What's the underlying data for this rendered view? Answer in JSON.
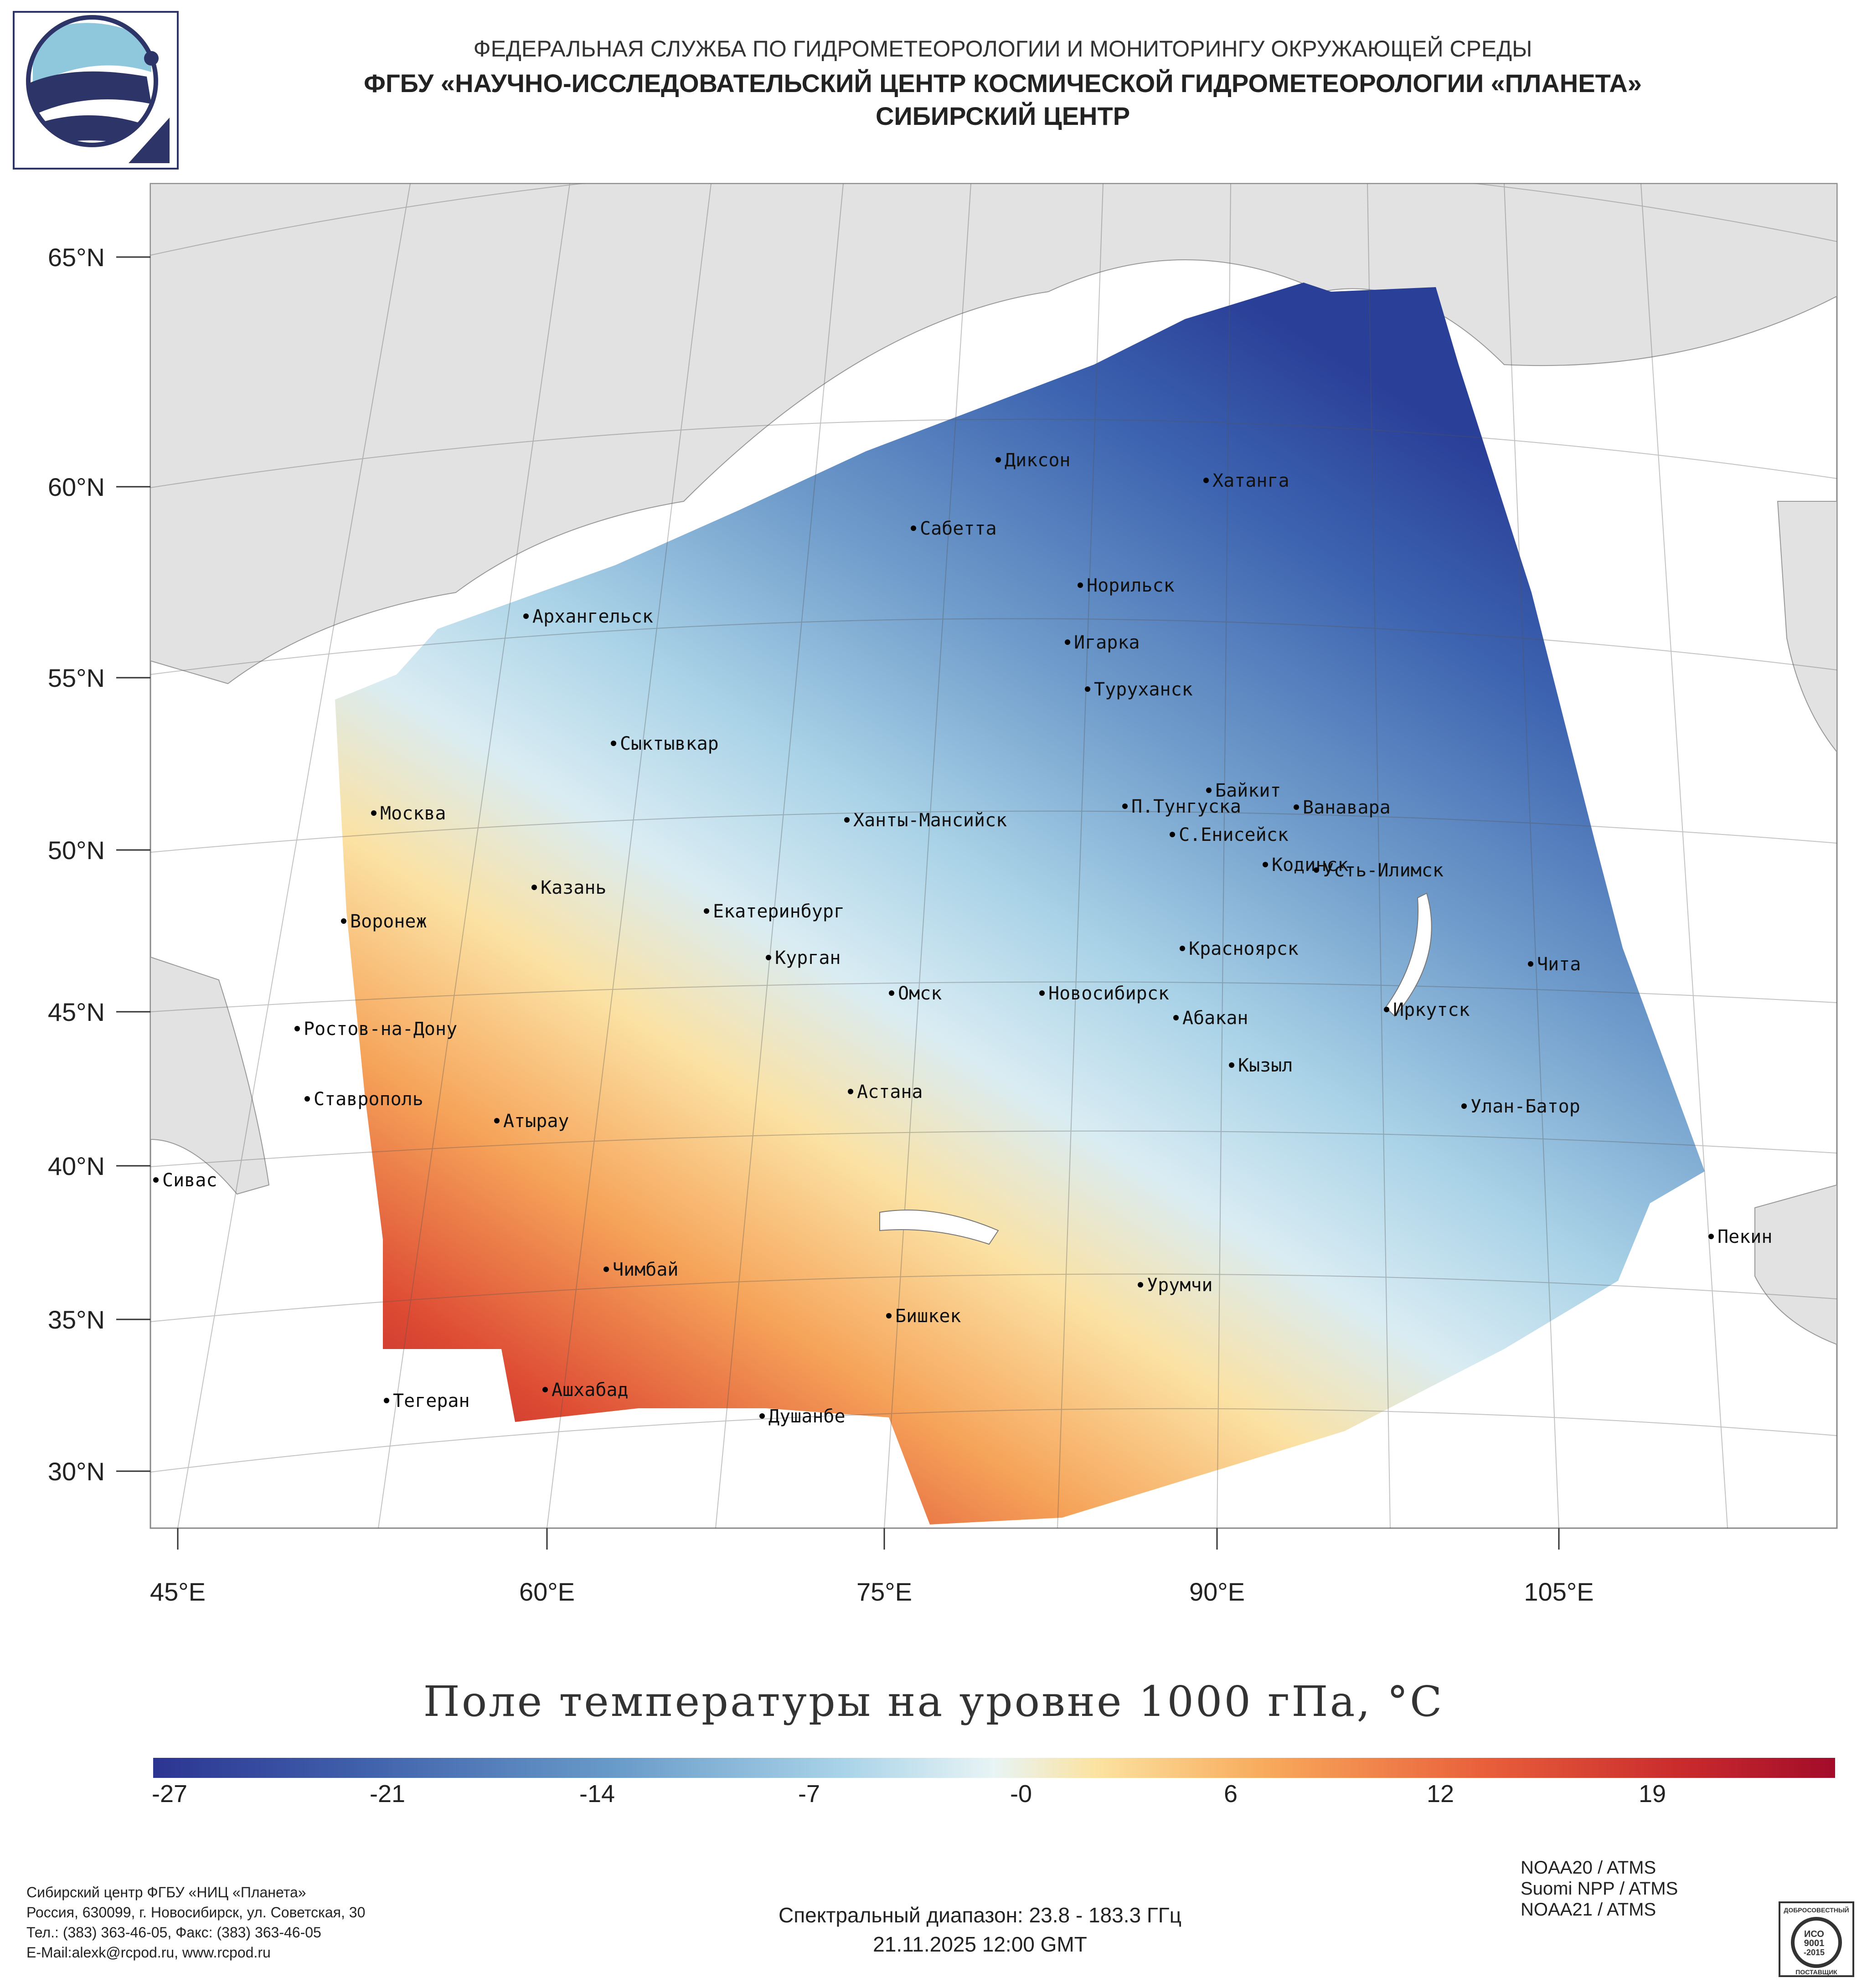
{
  "header": {
    "line1": "ФЕДЕРАЛЬНАЯ СЛУЖБА ПО ГИДРОМЕТЕОРОЛОГИИ И МОНИТОРИНГУ ОКРУЖАЮЩЕЙ СРЕДЫ",
    "line2": "ФГБУ «НАУЧНО-ИССЛЕДОВАТЕЛЬСКИЙ ЦЕНТР КОСМИЧЕСКОЙ ГИДРОМЕТЕОРОЛОГИИ «ПЛАНЕТА»",
    "line3": "СИБИРСКИЙ ЦЕНТР"
  },
  "map": {
    "lat_labels": [
      "65°N",
      "60°N",
      "55°N",
      "50°N",
      "45°N",
      "40°N",
      "35°N",
      "30°N"
    ],
    "lon_labels": [
      "45°E",
      "60°E",
      "75°E",
      "90°E",
      "105°E"
    ],
    "cities": [
      "Диксон",
      "Хатанга",
      "Сабетта",
      "Норильск",
      "Архангельск",
      "Игарка",
      "Туруханск",
      "Сыктывкар",
      "Байкит",
      "Москва",
      "П.Тунгуска",
      "Ванавара",
      "Ханты-Мансийск",
      "С.Енисейск",
      "Кодинск",
      "Усть-Илимск",
      "Казань",
      "Екатеринбург",
      "Воронеж",
      "Красноярск",
      "Курган",
      "Чита",
      "Омск",
      "Новосибирск",
      "Иркутск",
      "Абакан",
      "Ростов-на-Дону",
      "Кызыл",
      "Ставрополь",
      "Астана",
      "Улан-Батор",
      "Атырау",
      "Сивас",
      "Пекин",
      "Чимбай",
      "Урумчи",
      "Бишкек",
      "Ашхабад",
      "Тегеран",
      "Душанбе"
    ]
  },
  "title": "Поле температуры на уровне 1000 гПа, °C",
  "colorbar": {
    "ticks": [
      "-27",
      "-21",
      "-14",
      "-7",
      "-0",
      "6",
      "12",
      "19"
    ],
    "colors": [
      "#2c3592",
      "#6799c8",
      "#e8f4f5",
      "#f8ab5c",
      "#a30c2a"
    ]
  },
  "footer": {
    "org": "Сибирский центр ФГБУ «НИЦ «Планета»",
    "address": "Россия, 630099, г. Новосибирск, ул. Советская, 30",
    "phone": "Тел.: (383) 363-46-05, Факс: (383) 363-46-05",
    "email": "E-Mail:alexk@rcpod.ru, www.rcpod.ru",
    "spectral": "Спектральный диапазон: 23.8 - 183.3 ГГц",
    "datetime": "21.11.2025 12:00 GMT",
    "instruments": [
      "NOAA20 / ATMS",
      "Suomi NPP / ATMS",
      "NOAA21 / ATMS"
    ]
  },
  "iso_badge": {
    "line1": "ИСО",
    "line2": "9001",
    "line3": "-2015",
    "top": "ДОБРОСОВЕСТНЫЙ",
    "bottom": "ПОСТАВЩИК"
  }
}
